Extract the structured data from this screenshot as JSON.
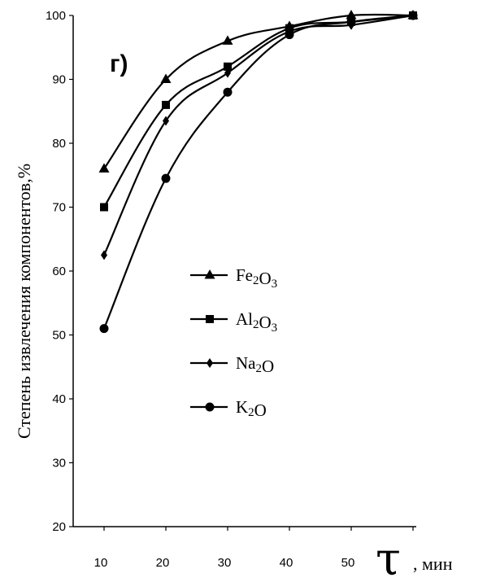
{
  "chart_data": {
    "type": "line",
    "panel_label": "г)",
    "ylabel": "Степень извлечения компонентов,%",
    "xlabel_symbol": "τ",
    "xlabel_unit": ", мин",
    "x": [
      10,
      20,
      30,
      40,
      50,
      60
    ],
    "x_tick_labels": [
      "10",
      "20",
      "30",
      "40",
      "50"
    ],
    "xlim": [
      10,
      60
    ],
    "ylim": [
      20,
      100
    ],
    "y_ticks": [
      20,
      30,
      40,
      50,
      60,
      70,
      80,
      90,
      100
    ],
    "y_tick_labels": [
      "20",
      "30",
      "40",
      "50",
      "60",
      "70",
      "80",
      "90",
      "100"
    ],
    "grid": false,
    "legend_position": "center",
    "series": [
      {
        "name": "Fe2O3",
        "legend": {
          "base1": "Fe",
          "sub1": "2",
          "base2": "O",
          "sub2": "3"
        },
        "marker": "triangle",
        "values": [
          76,
          90,
          96,
          98.3,
          100,
          100
        ]
      },
      {
        "name": "Al2O3",
        "legend": {
          "base1": "Al",
          "sub1": "2",
          "base2": "O",
          "sub2": "3"
        },
        "marker": "square",
        "values": [
          70,
          86,
          92,
          98,
          99,
          100
        ]
      },
      {
        "name": "Na2O",
        "legend": {
          "base1": "Na",
          "sub1": "2",
          "base2": "O",
          "sub2": ""
        },
        "marker": "diamond",
        "values": [
          62.5,
          83.5,
          91,
          97.5,
          98.5,
          100
        ]
      },
      {
        "name": "K2O",
        "legend": {
          "base1": "K",
          "sub1": "2",
          "base2": "O",
          "sub2": ""
        },
        "marker": "circle",
        "values": [
          51,
          74.5,
          88,
          97,
          99,
          100
        ]
      }
    ]
  }
}
